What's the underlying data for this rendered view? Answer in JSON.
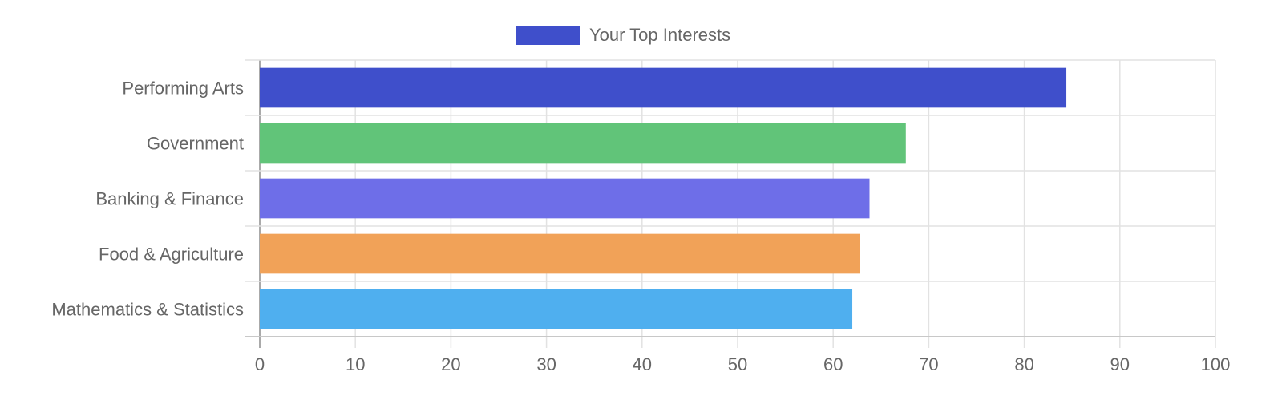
{
  "chart_data": {
    "type": "bar",
    "orientation": "horizontal",
    "categories": [
      "Performing Arts",
      "Government",
      "Banking & Finance",
      "Food & Agriculture",
      "Mathematics & Statistics"
    ],
    "series": [
      {
        "name": "Your Top Interests",
        "values": [
          84.4,
          67.6,
          63.8,
          62.8,
          62.0
        ]
      }
    ],
    "bar_colors": [
      "#3f4fcb",
      "#61c479",
      "#6e6ee8",
      "#f1a258",
      "#4fafef"
    ],
    "legend": {
      "position": "top",
      "label": "Your Top Interests",
      "color": "#3f4fcb"
    },
    "x_ticks": [
      "0",
      "10",
      "20",
      "30",
      "40",
      "50",
      "60",
      "70",
      "80",
      "90",
      "100"
    ],
    "xlim": [
      0,
      100
    ],
    "grid": true,
    "title": "",
    "xlabel": "",
    "ylabel": ""
  }
}
